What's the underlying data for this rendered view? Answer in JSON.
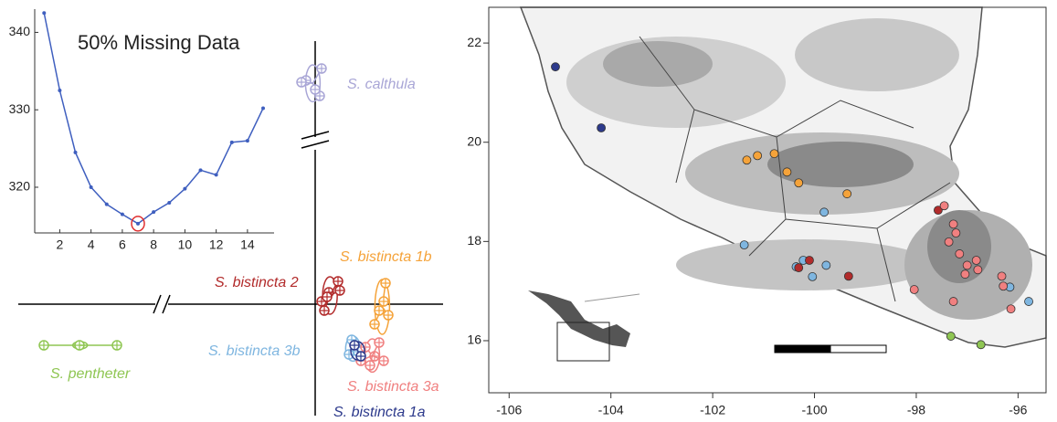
{
  "chart_data": [
    {
      "type": "line",
      "title": "50% Missing Data",
      "x": [
        1,
        2,
        3,
        4,
        5,
        6,
        7,
        8,
        9,
        10,
        11,
        12,
        13,
        14,
        15
      ],
      "values": [
        342.5,
        332.5,
        324.5,
        320,
        317.8,
        316.5,
        315.3,
        316.8,
        318,
        319.8,
        322.2,
        321.6,
        325.8,
        326,
        330.2
      ],
      "color": "#3f5fbf",
      "selected": 7,
      "selected_color": "#e03030",
      "xlim": [
        0.4,
        15.7
      ],
      "ylim": [
        314.1,
        343
      ],
      "xticks": [
        2,
        4,
        6,
        8,
        10,
        12,
        14
      ],
      "yticks": [
        320,
        330,
        340
      ]
    },
    {
      "type": "scatter",
      "xlim": [
        -32.5,
        14
      ],
      "ylim": [
        -12.2,
        28.8
      ],
      "series": [
        {
          "name": "S. calthula",
          "color": "#a9a6d6",
          "x": [
            -1,
            0.7,
            0.5,
            -1.5,
            0
          ],
          "y": [
            24.5,
            25.8,
            22.8,
            24.3,
            23.5
          ]
        },
        {
          "name": "S. bistincta 2",
          "color": "#b22b2b",
          "x": [
            0.7,
            1.5,
            2.5,
            1,
            2.7,
            1.3
          ],
          "y": [
            0.3,
            1.3,
            2.5,
            -0.7,
            1.5,
            0.8
          ]
        },
        {
          "name": "S. bistincta 1b",
          "color": "#f5a33a",
          "x": [
            7.7,
            7.5,
            6.5,
            8,
            7
          ],
          "y": [
            2.3,
            0.3,
            -2.2,
            -1.2,
            -0.7
          ]
        },
        {
          "name": "S. pentheter",
          "color": "#8fc653",
          "x": [
            -29.7,
            -25.8,
            -21.7
          ],
          "y": [
            -4.5,
            -4.5,
            -4.5
          ]
        },
        {
          "name": "S. bistincta 3b",
          "color": "#7fb6e0",
          "x": [
            4,
            4.7,
            3.7
          ],
          "y": [
            -3.9,
            -5.2,
            -5.5
          ]
        },
        {
          "name": "S. bistincta 3a",
          "color": "#f08080",
          "x": [
            5.5,
            6.5,
            5,
            7,
            6,
            7.5
          ],
          "y": [
            -4.7,
            -5.7,
            -6.2,
            -4.2,
            -6.7,
            -6.2
          ]
        },
        {
          "name": "S. bistincta 1a",
          "color": "#2d3a8c",
          "x": [
            4.3,
            5
          ],
          "y": [
            -4.5,
            -5.7
          ]
        }
      ]
    },
    {
      "type": "scatter",
      "xlim": [
        -106.4,
        -95.45
      ],
      "ylim": [
        14.95,
        22.72
      ],
      "xticks": [
        -106,
        -104,
        -102,
        -100,
        -98,
        -96
      ],
      "yticks": [
        16,
        18,
        20,
        22
      ],
      "series": [
        {
          "color": "#2d3a8c",
          "x": [
            -105.09,
            -104.19
          ],
          "y": [
            21.52,
            20.29
          ]
        },
        {
          "color": "#f5a33a",
          "x": [
            -101.33,
            -101.12,
            -100.79,
            -100.54,
            -100.31,
            -99.36
          ],
          "y": [
            19.64,
            19.73,
            19.77,
            19.4,
            19.18,
            18.96
          ]
        },
        {
          "color": "#7fb6e0",
          "x": [
            -99.81,
            -101.38,
            -100.36,
            -100.22,
            -100.04,
            -99.77,
            -96.16,
            -95.79
          ],
          "y": [
            18.59,
            17.93,
            17.49,
            17.62,
            17.29,
            17.52,
            17.08,
            16.79
          ]
        },
        {
          "color": "#b22b2b",
          "x": [
            -97.57,
            -100.1,
            -100.31,
            -99.33
          ],
          "y": [
            18.63,
            17.62,
            17.47,
            17.3
          ]
        },
        {
          "color": "#f08080",
          "x": [
            -97.45,
            -97.27,
            -97.22,
            -97.36,
            -97.15,
            -97,
            -96.82,
            -97.04,
            -96.79,
            -98.04,
            -97.27,
            -96.32,
            -96.29,
            -96.14
          ],
          "y": [
            18.72,
            18.35,
            18.17,
            17.99,
            17.75,
            17.52,
            17.62,
            17.34,
            17.43,
            17.03,
            16.79,
            17.3,
            17.1,
            16.64
          ]
        },
        {
          "color": "#8fc653",
          "x": [
            -97.32,
            -96.73
          ],
          "y": [
            16.09,
            15.92
          ]
        }
      ]
    }
  ]
}
